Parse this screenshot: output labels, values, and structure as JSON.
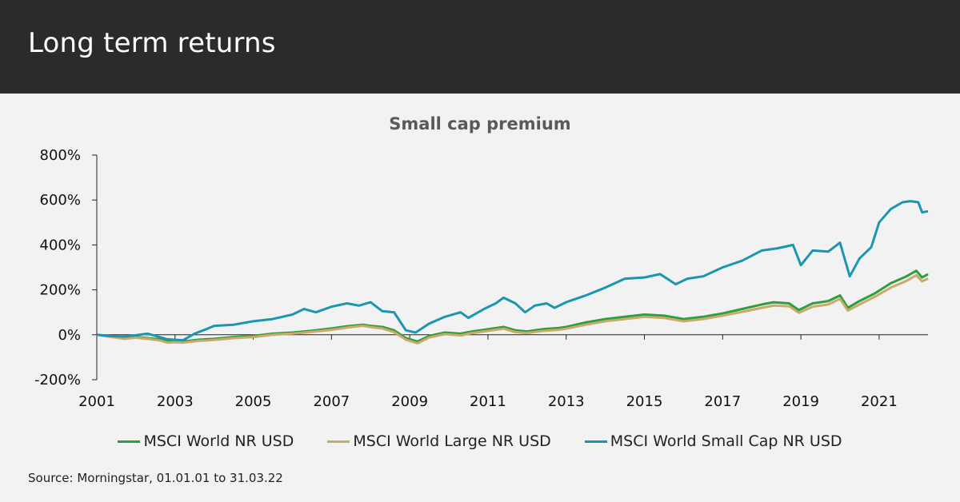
{
  "header": {
    "title": "Long term returns"
  },
  "source": "Source: Morningstar, 01.01.01 to 31.03.22",
  "chart_data": {
    "type": "line",
    "title": "Small cap premium",
    "xlabel": "",
    "ylabel": "",
    "xlim": [
      2001.0,
      2022.25
    ],
    "ylim": [
      -200,
      800
    ],
    "x_ticks": [
      2001,
      2003,
      2005,
      2007,
      2009,
      2011,
      2013,
      2015,
      2017,
      2019,
      2021
    ],
    "x_tick_labels": [
      "2001",
      "2003",
      "2005",
      "2007",
      "2009",
      "2011",
      "2013",
      "2015",
      "2017",
      "2019",
      "2021"
    ],
    "y_ticks": [
      -200,
      0,
      200,
      400,
      600,
      800
    ],
    "y_tick_labels": [
      "-200%",
      "0%",
      "200%",
      "400%",
      "600%",
      "800%"
    ],
    "grid": false,
    "legend_position": "bottom",
    "series": [
      {
        "name": "MSCI World NR USD",
        "color": "#2e9e3e",
        "points": [
          [
            2001.0,
            0
          ],
          [
            2001.3,
            -5
          ],
          [
            2001.7,
            -15
          ],
          [
            2002.0,
            -10
          ],
          [
            2002.3,
            -15
          ],
          [
            2002.6,
            -20
          ],
          [
            2002.8,
            -30
          ],
          [
            2003.0,
            -28
          ],
          [
            2003.2,
            -30
          ],
          [
            2003.6,
            -22
          ],
          [
            2004.0,
            -18
          ],
          [
            2004.5,
            -10
          ],
          [
            2005.0,
            -5
          ],
          [
            2005.5,
            5
          ],
          [
            2006.0,
            10
          ],
          [
            2006.5,
            18
          ],
          [
            2007.0,
            28
          ],
          [
            2007.4,
            38
          ],
          [
            2007.8,
            45
          ],
          [
            2008.0,
            40
          ],
          [
            2008.3,
            35
          ],
          [
            2008.6,
            20
          ],
          [
            2008.9,
            -15
          ],
          [
            2009.2,
            -30
          ],
          [
            2009.5,
            -5
          ],
          [
            2009.9,
            10
          ],
          [
            2010.3,
            5
          ],
          [
            2010.6,
            15
          ],
          [
            2011.0,
            25
          ],
          [
            2011.4,
            35
          ],
          [
            2011.7,
            20
          ],
          [
            2012.0,
            15
          ],
          [
            2012.4,
            25
          ],
          [
            2012.8,
            30
          ],
          [
            2013.0,
            35
          ],
          [
            2013.5,
            55
          ],
          [
            2014.0,
            70
          ],
          [
            2014.5,
            80
          ],
          [
            2015.0,
            90
          ],
          [
            2015.5,
            85
          ],
          [
            2016.0,
            70
          ],
          [
            2016.5,
            80
          ],
          [
            2017.0,
            95
          ],
          [
            2017.5,
            115
          ],
          [
            2018.0,
            135
          ],
          [
            2018.3,
            145
          ],
          [
            2018.7,
            140
          ],
          [
            2018.95,
            110
          ],
          [
            2019.3,
            140
          ],
          [
            2019.7,
            150
          ],
          [
            2020.0,
            175
          ],
          [
            2020.2,
            120
          ],
          [
            2020.5,
            150
          ],
          [
            2020.9,
            185
          ],
          [
            2021.3,
            230
          ],
          [
            2021.7,
            260
          ],
          [
            2021.95,
            285
          ],
          [
            2022.1,
            255
          ],
          [
            2022.25,
            270
          ]
        ]
      },
      {
        "name": "MSCI World Large NR USD",
        "color": "#c9aa6a",
        "points": [
          [
            2001.0,
            0
          ],
          [
            2001.3,
            -8
          ],
          [
            2001.7,
            -18
          ],
          [
            2002.0,
            -13
          ],
          [
            2002.3,
            -18
          ],
          [
            2002.6,
            -25
          ],
          [
            2002.8,
            -35
          ],
          [
            2003.0,
            -33
          ],
          [
            2003.2,
            -35
          ],
          [
            2003.6,
            -27
          ],
          [
            2004.0,
            -23
          ],
          [
            2004.5,
            -15
          ],
          [
            2005.0,
            -10
          ],
          [
            2005.5,
            0
          ],
          [
            2006.0,
            5
          ],
          [
            2006.5,
            13
          ],
          [
            2007.0,
            22
          ],
          [
            2007.4,
            32
          ],
          [
            2007.8,
            40
          ],
          [
            2008.0,
            34
          ],
          [
            2008.3,
            28
          ],
          [
            2008.6,
            12
          ],
          [
            2008.9,
            -22
          ],
          [
            2009.2,
            -38
          ],
          [
            2009.5,
            -12
          ],
          [
            2009.9,
            3
          ],
          [
            2010.3,
            -3
          ],
          [
            2010.6,
            8
          ],
          [
            2011.0,
            17
          ],
          [
            2011.4,
            27
          ],
          [
            2011.7,
            12
          ],
          [
            2012.0,
            8
          ],
          [
            2012.4,
            17
          ],
          [
            2012.8,
            22
          ],
          [
            2013.0,
            27
          ],
          [
            2013.5,
            45
          ],
          [
            2014.0,
            60
          ],
          [
            2014.5,
            70
          ],
          [
            2015.0,
            80
          ],
          [
            2015.5,
            75
          ],
          [
            2016.0,
            60
          ],
          [
            2016.5,
            70
          ],
          [
            2017.0,
            85
          ],
          [
            2017.5,
            102
          ],
          [
            2018.0,
            120
          ],
          [
            2018.3,
            130
          ],
          [
            2018.7,
            127
          ],
          [
            2018.95,
            98
          ],
          [
            2019.3,
            125
          ],
          [
            2019.7,
            135
          ],
          [
            2020.0,
            160
          ],
          [
            2020.2,
            108
          ],
          [
            2020.5,
            135
          ],
          [
            2020.9,
            170
          ],
          [
            2021.3,
            210
          ],
          [
            2021.7,
            240
          ],
          [
            2021.95,
            265
          ],
          [
            2022.1,
            238
          ],
          [
            2022.25,
            250
          ]
        ]
      },
      {
        "name": "MSCI World Small Cap NR USD",
        "color": "#1c96b0",
        "points": [
          [
            2001.0,
            0
          ],
          [
            2001.3,
            -5
          ],
          [
            2001.7,
            -8
          ],
          [
            2002.0,
            -2
          ],
          [
            2002.3,
            5
          ],
          [
            2002.6,
            -10
          ],
          [
            2002.8,
            -20
          ],
          [
            2003.0,
            -22
          ],
          [
            2003.2,
            -25
          ],
          [
            2003.5,
            5
          ],
          [
            2003.8,
            25
          ],
          [
            2004.0,
            40
          ],
          [
            2004.5,
            45
          ],
          [
            2005.0,
            60
          ],
          [
            2005.5,
            70
          ],
          [
            2006.0,
            90
          ],
          [
            2006.3,
            115
          ],
          [
            2006.6,
            100
          ],
          [
            2007.0,
            125
          ],
          [
            2007.4,
            140
          ],
          [
            2007.7,
            130
          ],
          [
            2008.0,
            145
          ],
          [
            2008.3,
            105
          ],
          [
            2008.6,
            100
          ],
          [
            2008.9,
            20
          ],
          [
            2009.15,
            10
          ],
          [
            2009.5,
            50
          ],
          [
            2009.9,
            80
          ],
          [
            2010.3,
            100
          ],
          [
            2010.5,
            75
          ],
          [
            2010.9,
            115
          ],
          [
            2011.2,
            140
          ],
          [
            2011.4,
            165
          ],
          [
            2011.7,
            140
          ],
          [
            2011.95,
            100
          ],
          [
            2012.2,
            130
          ],
          [
            2012.5,
            140
          ],
          [
            2012.7,
            120
          ],
          [
            2013.0,
            145
          ],
          [
            2013.5,
            175
          ],
          [
            2014.0,
            210
          ],
          [
            2014.5,
            250
          ],
          [
            2015.0,
            255
          ],
          [
            2015.4,
            270
          ],
          [
            2015.8,
            225
          ],
          [
            2016.1,
            250
          ],
          [
            2016.5,
            260
          ],
          [
            2017.0,
            300
          ],
          [
            2017.5,
            330
          ],
          [
            2018.0,
            375
          ],
          [
            2018.4,
            385
          ],
          [
            2018.8,
            400
          ],
          [
            2019.0,
            310
          ],
          [
            2019.3,
            375
          ],
          [
            2019.7,
            370
          ],
          [
            2020.0,
            410
          ],
          [
            2020.25,
            260
          ],
          [
            2020.5,
            340
          ],
          [
            2020.8,
            390
          ],
          [
            2021.0,
            500
          ],
          [
            2021.3,
            560
          ],
          [
            2021.6,
            590
          ],
          [
            2021.8,
            595
          ],
          [
            2022.0,
            590
          ],
          [
            2022.1,
            545
          ],
          [
            2022.25,
            550
          ]
        ]
      }
    ]
  }
}
